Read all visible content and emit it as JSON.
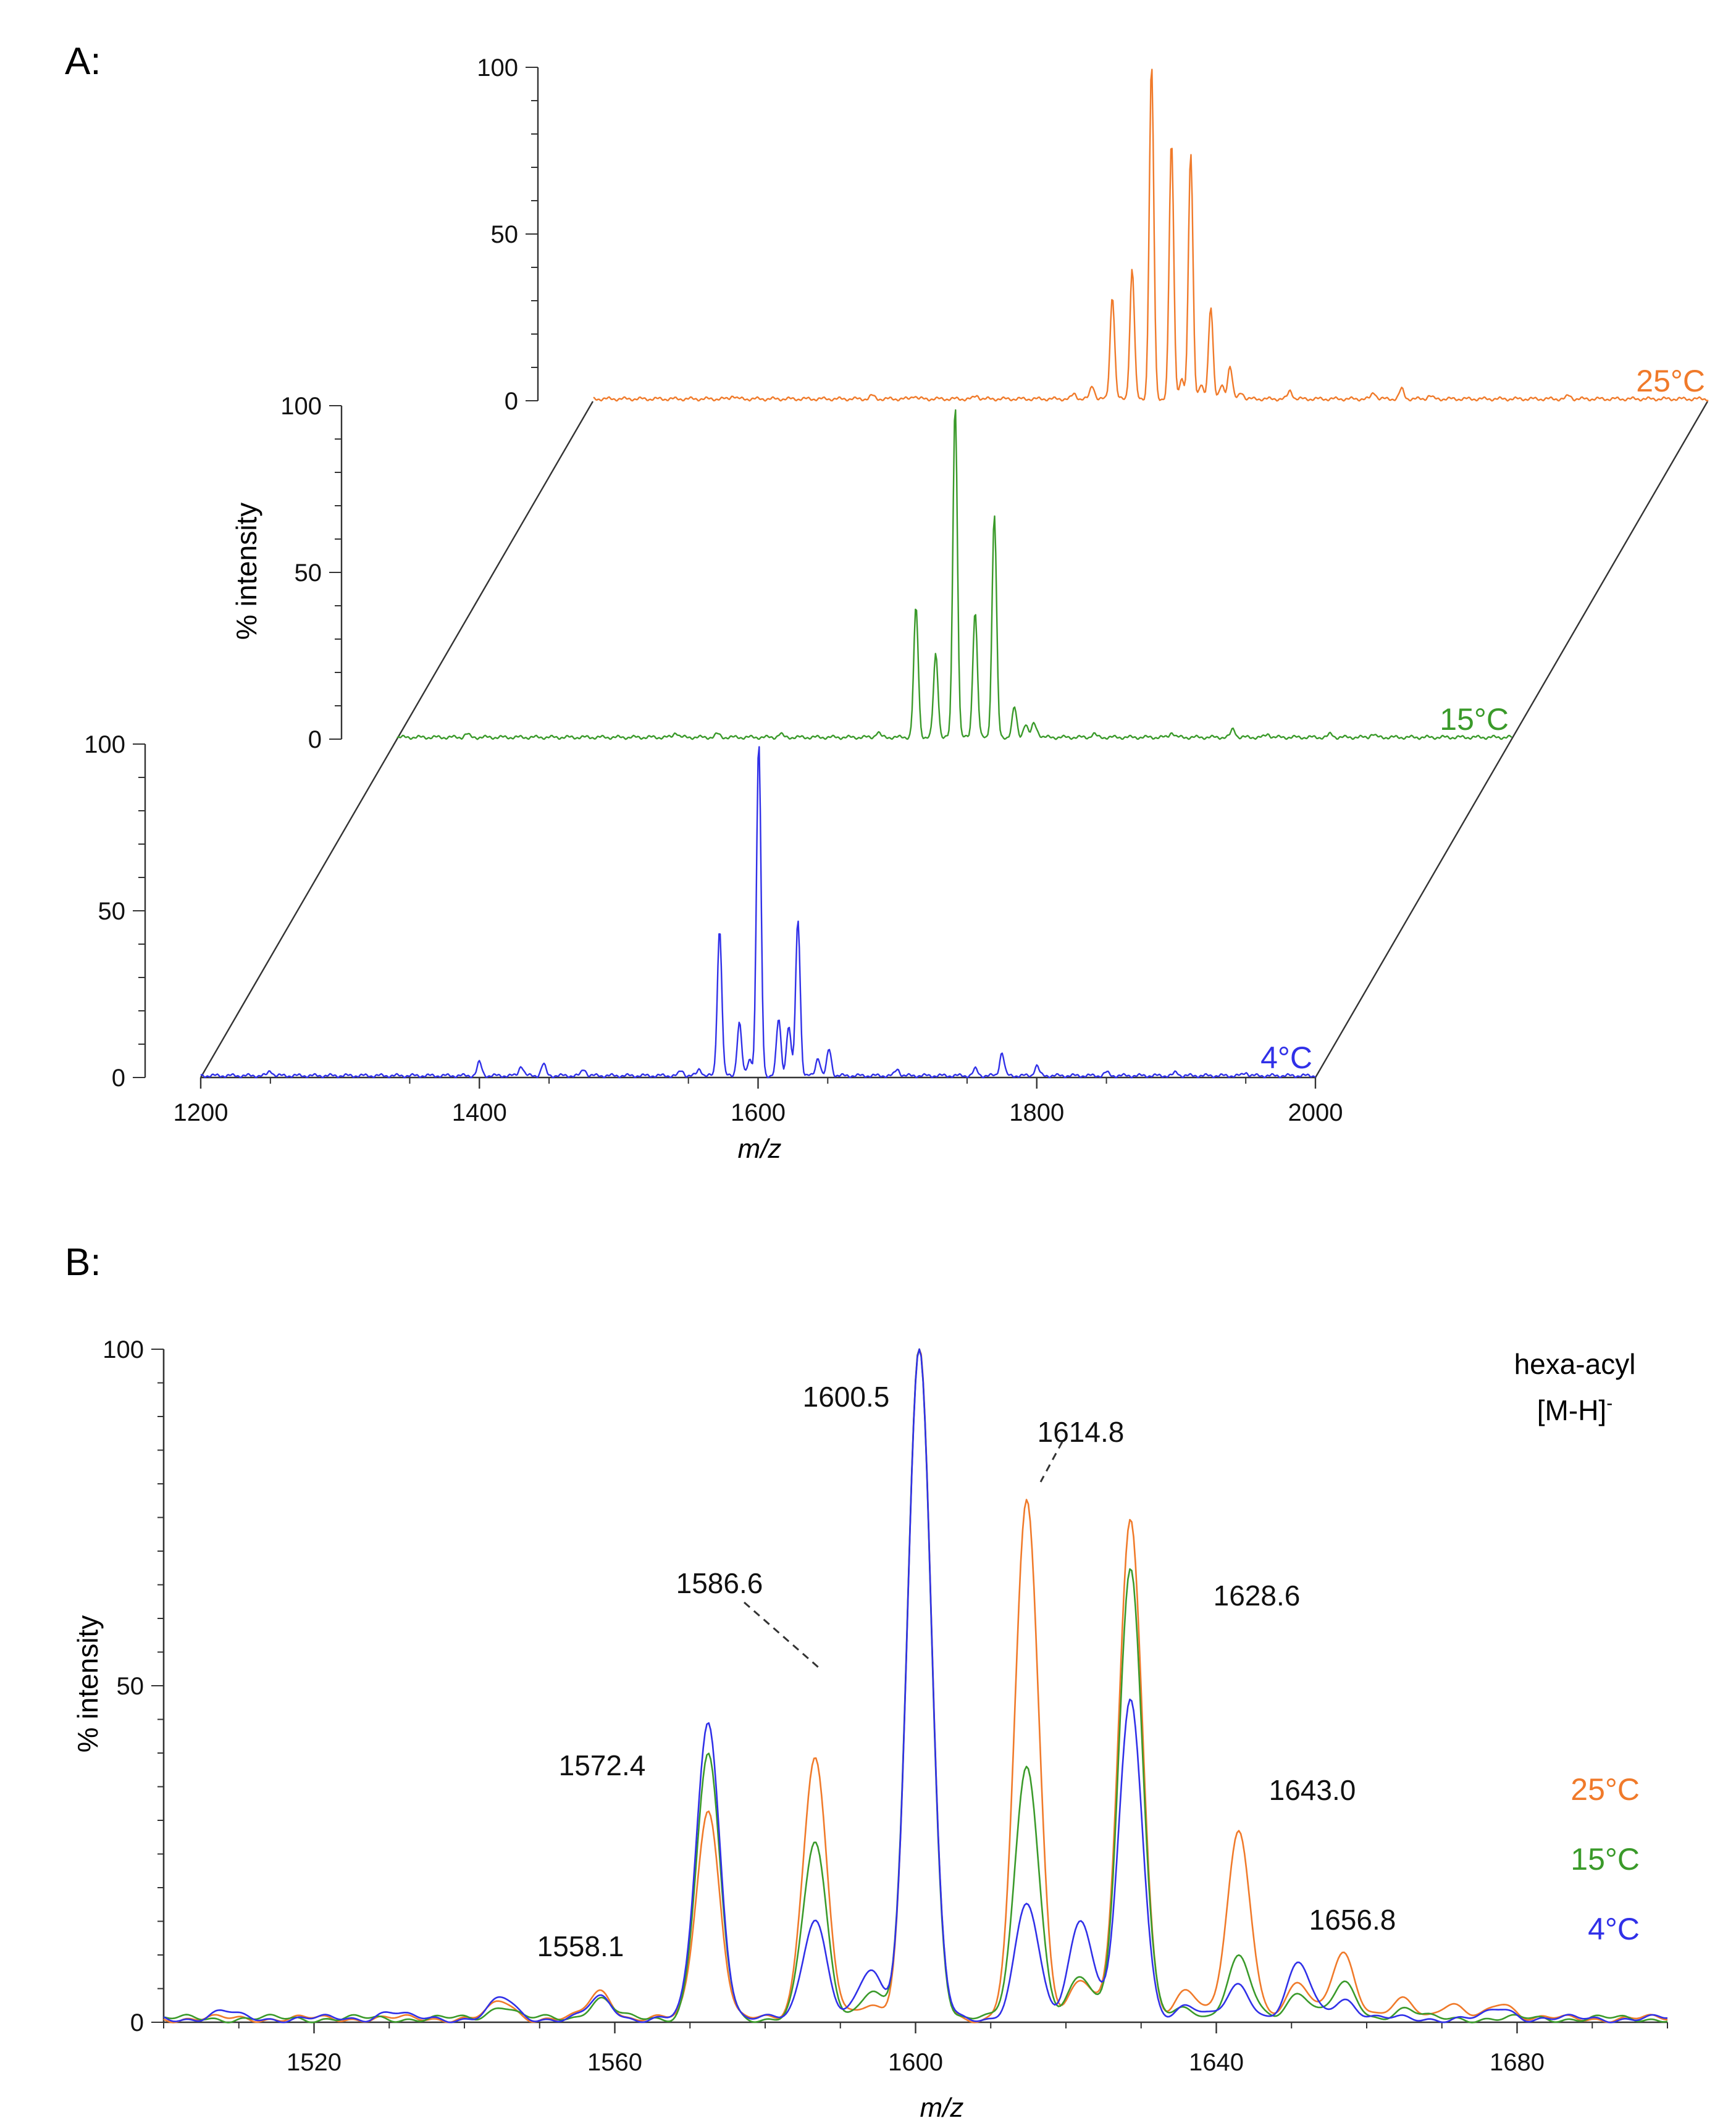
{
  "figure": {
    "panel_a_label": "A:",
    "panel_b_label": "B:"
  },
  "colors": {
    "t25": "#f07a2a",
    "t15": "#3a9a2a",
    "t4": "#3030e8",
    "axis": "#333333",
    "text": "#111111"
  },
  "chart_data": [
    {
      "type": "line",
      "panel": "A",
      "subtype": "stacked 3D mass spectra",
      "xlabel": "m/z",
      "ylabel": "% intensity",
      "xlim": [
        1200,
        2000
      ],
      "ylim": [
        0,
        100
      ],
      "x_ticks": [
        "1200",
        "1400",
        "1600",
        "1800",
        "2000"
      ],
      "y_ticks": [
        "0",
        "50",
        "100"
      ],
      "series": [
        {
          "name": "4°C",
          "color_key": "t4",
          "peaks": [
            [
              1250,
              1.5
            ],
            [
              1400,
              4
            ],
            [
              1430,
              3
            ],
            [
              1446,
              3.5
            ],
            [
              1475,
              2
            ],
            [
              1545,
              1.5
            ],
            [
              1558,
              2
            ],
            [
              1572.4,
              44
            ],
            [
              1586.6,
              16
            ],
            [
              1594,
              5
            ],
            [
              1600.5,
              100
            ],
            [
              1614.8,
              17
            ],
            [
              1622,
              15
            ],
            [
              1628.6,
              47
            ],
            [
              1643,
              5.5
            ],
            [
              1651,
              8
            ],
            [
              1700,
              2
            ],
            [
              1756,
              2
            ],
            [
              1775,
              7
            ],
            [
              1800,
              3
            ],
            [
              1850,
              1
            ],
            [
              1900,
              1
            ],
            [
              1950,
              1
            ]
          ]
        },
        {
          "name": "15°C",
          "color_key": "t15",
          "peaks": [
            [
              1250,
              1
            ],
            [
              1400,
              1.5
            ],
            [
              1430,
              1
            ],
            [
              1475,
              1
            ],
            [
              1545,
              1.5
            ],
            [
              1572.4,
              39
            ],
            [
              1586.6,
              25
            ],
            [
              1600.5,
              100
            ],
            [
              1614.8,
              38
            ],
            [
              1628.6,
              67
            ],
            [
              1643,
              9
            ],
            [
              1651,
              4
            ],
            [
              1657,
              4
            ],
            [
              1660,
              1
            ],
            [
              1700,
              1
            ],
            [
              1756,
              1.5
            ],
            [
              1800,
              2.5
            ],
            [
              1825,
              1
            ],
            [
              1870,
              1
            ],
            [
              1900,
              1
            ]
          ]
        },
        {
          "name": "25°C",
          "color_key": "t25",
          "peaks": [
            [
              1300,
              1
            ],
            [
              1400,
              1
            ],
            [
              1430,
              1
            ],
            [
              1475,
              1
            ],
            [
              1545,
              1.5
            ],
            [
              1558,
              4
            ],
            [
              1572.4,
              31
            ],
            [
              1586.6,
              39
            ],
            [
              1600.5,
              100
            ],
            [
              1614.8,
              77
            ],
            [
              1622,
              6
            ],
            [
              1628.6,
              74
            ],
            [
              1636,
              4
            ],
            [
              1643,
              28
            ],
            [
              1651,
              4
            ],
            [
              1656.8,
              10
            ],
            [
              1665,
              2
            ],
            [
              1700,
              2.5
            ],
            [
              1760,
              2
            ],
            [
              1780,
              3
            ],
            [
              1800,
              1
            ],
            [
              1900,
              1
            ]
          ]
        }
      ]
    },
    {
      "type": "line",
      "panel": "B",
      "subtype": "overlaid mass spectra (zoom)",
      "title": "hexa-acyl",
      "title2": "[M-H]",
      "title2_sup": "-",
      "xlabel": "m/z",
      "ylabel": "% intensity",
      "xlim": [
        1500,
        1700
      ],
      "ylim": [
        0,
        100
      ],
      "x_ticks": [
        "1520",
        "1560",
        "1600",
        "1640",
        "1680"
      ],
      "y_ticks": [
        "0",
        "50",
        "100"
      ],
      "legend": [
        "25°C",
        "15°C",
        "4°C"
      ],
      "peak_labels": [
        "1558.1",
        "1572.4",
        "1586.6",
        "1600.5",
        "1614.8",
        "1628.6",
        "1643.0",
        "1656.8"
      ],
      "series": [
        {
          "name": "25°C",
          "color_key": "t25",
          "peaks": [
            [
              1545,
              2.5
            ],
            [
              1558.1,
              4
            ],
            [
              1572.4,
              31
            ],
            [
              1586.6,
              39
            ],
            [
              1594,
              2
            ],
            [
              1600.5,
              100
            ],
            [
              1614.8,
              77
            ],
            [
              1622,
              6
            ],
            [
              1628.6,
              74
            ],
            [
              1636,
              4
            ],
            [
              1643,
              28
            ],
            [
              1651,
              5
            ],
            [
              1656.8,
              10
            ],
            [
              1665,
              3
            ],
            [
              1671,
              2
            ],
            [
              1678,
              2.5
            ]
          ]
        },
        {
          "name": "15°C",
          "color_key": "t15",
          "peaks": [
            [
              1545,
              2
            ],
            [
              1558.1,
              3
            ],
            [
              1572.4,
              39
            ],
            [
              1586.6,
              26
            ],
            [
              1594,
              4
            ],
            [
              1600.5,
              100
            ],
            [
              1614.8,
              38
            ],
            [
              1622,
              6
            ],
            [
              1628.6,
              67
            ],
            [
              1636,
              1.5
            ],
            [
              1643,
              9
            ],
            [
              1651,
              4
            ],
            [
              1657,
              5
            ],
            [
              1665,
              1.5
            ]
          ]
        },
        {
          "name": "4°C",
          "color_key": "t4",
          "peaks": [
            [
              1508,
              1
            ],
            [
              1530,
              1
            ],
            [
              1545,
              3
            ],
            [
              1558.1,
              3
            ],
            [
              1572.4,
              44
            ],
            [
              1586.6,
              15
            ],
            [
              1594,
              7
            ],
            [
              1600.5,
              100
            ],
            [
              1614.8,
              17
            ],
            [
              1622,
              15
            ],
            [
              1628.6,
              47
            ],
            [
              1636,
              2
            ],
            [
              1643,
              5
            ],
            [
              1651,
              8
            ],
            [
              1657,
              3
            ],
            [
              1678,
              1.5
            ]
          ]
        }
      ]
    }
  ]
}
